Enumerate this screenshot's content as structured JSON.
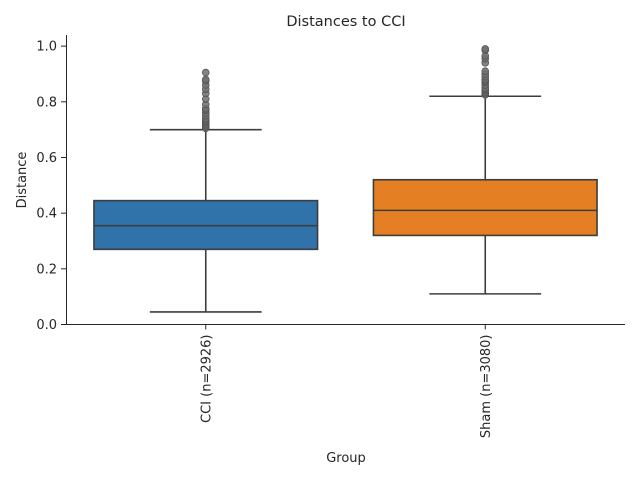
{
  "chart_data": {
    "type": "box",
    "title": "Distances to CCI",
    "xlabel": "Group",
    "ylabel": "Distance",
    "ylim": [
      0.0,
      1.04
    ],
    "yticks": [
      "0.0",
      "0.2",
      "0.4",
      "0.6",
      "0.8",
      "1.0"
    ],
    "grid": false,
    "categories": [
      "CCI (n=2926)",
      "Sham (n=3080)"
    ],
    "boxes": [
      {
        "category": "CCI (n=2926)",
        "color": "#2f73aa",
        "whisker_low": 0.045,
        "q1": 0.27,
        "median": 0.355,
        "q3": 0.445,
        "whisker_high": 0.7,
        "outliers": [
          0.705,
          0.71,
          0.715,
          0.72,
          0.725,
          0.73,
          0.735,
          0.74,
          0.75,
          0.76,
          0.77,
          0.775,
          0.79,
          0.81,
          0.83,
          0.845,
          0.86,
          0.875,
          0.88,
          0.905
        ]
      },
      {
        "category": "Sham (n=3080)",
        "color": "#e47f24",
        "whisker_low": 0.11,
        "q1": 0.32,
        "median": 0.41,
        "q3": 0.52,
        "whisker_high": 0.82,
        "outliers": [
          0.825,
          0.83,
          0.835,
          0.84,
          0.845,
          0.85,
          0.86,
          0.87,
          0.875,
          0.88,
          0.89,
          0.9,
          0.91,
          0.94,
          0.955,
          0.965,
          0.985,
          0.99
        ]
      }
    ]
  }
}
